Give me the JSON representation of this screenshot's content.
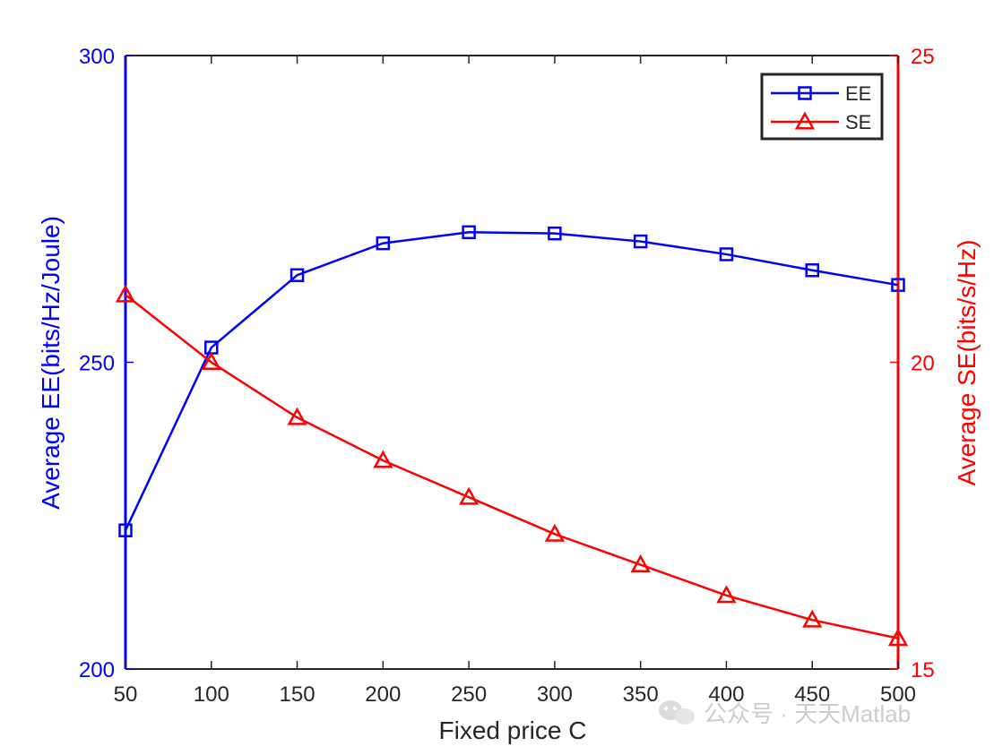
{
  "chart_data": {
    "type": "line",
    "xlabel": "Fixed price C",
    "x": [
      50,
      100,
      150,
      200,
      250,
      300,
      350,
      400,
      450,
      500
    ],
    "xlim": [
      50,
      500
    ],
    "xticks": [
      50,
      100,
      150,
      200,
      250,
      300,
      350,
      400,
      450,
      500
    ],
    "y_left": {
      "label": "Average EE(bits/Hz/Joule)",
      "lim": [
        200,
        300
      ],
      "ticks": [
        200,
        250,
        300
      ],
      "color": "#0000ff"
    },
    "y_right": {
      "label": "Average SE(bits/s/Hz)",
      "lim": [
        15,
        25
      ],
      "ticks": [
        15,
        20,
        25
      ],
      "color": "#ff0000"
    },
    "series": [
      {
        "name": "EE",
        "axis": "left",
        "marker": "square",
        "color": "#0000ff",
        "values": [
          222.6,
          252.4,
          264.2,
          269.4,
          271.2,
          271.0,
          269.7,
          267.6,
          265.0,
          262.6
        ]
      },
      {
        "name": "SE",
        "axis": "right",
        "marker": "triangle",
        "color": "#ff0000",
        "values": [
          21.1,
          20.0,
          19.1,
          18.4,
          17.8,
          17.2,
          16.7,
          16.2,
          15.8,
          15.5
        ]
      }
    ],
    "legend": {
      "position": "top-right",
      "entries": [
        "EE",
        "SE"
      ]
    },
    "grid": false
  },
  "watermark": {
    "text": "公众号 · 天天Matlab"
  }
}
